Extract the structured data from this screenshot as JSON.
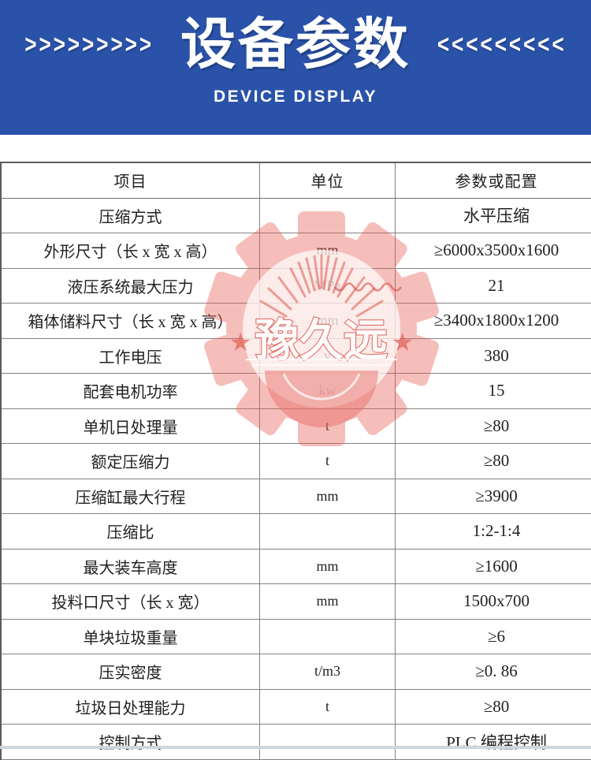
{
  "header": {
    "title": "设备参数",
    "subtitle": "DEVICE DISPLAY",
    "left_chevrons": ">>>>>>>>>",
    "right_chevrons": "<<<<<<<<<",
    "bg_color": "#2a52a9"
  },
  "table": {
    "columns": [
      "项目",
      "单位",
      "参数或配置"
    ],
    "rows": [
      [
        "压缩方式",
        "",
        "水平压缩"
      ],
      [
        "外形尺寸（长 x 宽 x 高）",
        "mm",
        "≥6000x3500x1600"
      ],
      [
        "液压系统最大压力",
        "MPa",
        "21"
      ],
      [
        "箱体储料尺寸（长 x 宽 x 高）",
        "mm",
        "≥3400x1800x1200"
      ],
      [
        "工作电压",
        "v",
        "380"
      ],
      [
        "配套电机功率",
        "kw",
        "15"
      ],
      [
        "单机日处理量",
        "t",
        "≥80"
      ],
      [
        "额定压缩力",
        "t",
        "≥80"
      ],
      [
        "压缩缸最大行程",
        "mm",
        "≥3900"
      ],
      [
        "压缩比",
        "",
        "1:2-1:4"
      ],
      [
        "最大装车高度",
        "mm",
        "≥1600"
      ],
      [
        "投料口尺寸（长 x 宽）",
        "mm",
        "1500x700"
      ],
      [
        "单块垃圾重量",
        "",
        "≥6"
      ],
      [
        "压实密度",
        "t/m3",
        "≥0. 86"
      ],
      [
        "垃圾日处理能力",
        "t",
        "≥80"
      ],
      [
        "控制方式",
        "",
        "PLC 编程控制"
      ]
    ]
  },
  "watermark": {
    "star_left": "★",
    "text": "豫久远",
    "star_right": "★",
    "color": "#e05a50"
  }
}
